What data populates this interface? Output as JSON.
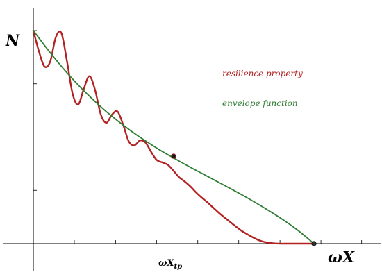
{
  "chart_data": {
    "type": "line",
    "xlabel": "ωX",
    "ylabel": "N",
    "xlim": [
      -0.05,
      1.25
    ],
    "ylim": [
      -0.15,
      1.1
    ],
    "grid": false,
    "legend_position": "top-right",
    "series": [
      {
        "name": "resilience property",
        "color": "#b22222",
        "x": [
          0,
          0.02,
          0.04,
          0.06,
          0.08,
          0.1,
          0.12,
          0.14,
          0.16,
          0.18,
          0.2,
          0.22,
          0.24,
          0.26,
          0.28,
          0.3,
          0.32,
          0.34,
          0.36,
          0.38,
          0.4,
          0.42,
          0.44,
          0.46,
          0.48,
          0.5,
          0.52,
          0.54,
          0.56,
          0.58,
          0.6,
          0.62,
          0.64,
          0.66,
          0.68,
          0.7,
          0.72,
          0.74,
          0.76,
          0.78,
          0.8,
          0.82,
          0.84,
          0.86,
          0.88,
          0.9,
          0.92,
          0.94,
          0.96,
          0.98,
          1.0
        ],
        "y": [
          1.0,
          0.902,
          0.831,
          0.854,
          0.968,
          0.988,
          0.855,
          0.703,
          0.653,
          0.727,
          0.786,
          0.721,
          0.608,
          0.567,
          0.605,
          0.62,
          0.558,
          0.48,
          0.461,
          0.484,
          0.474,
          0.43,
          0.392,
          0.381,
          0.369,
          0.341,
          0.311,
          0.291,
          0.268,
          0.24,
          0.216,
          0.194,
          0.17,
          0.146,
          0.124,
          0.103,
          0.082,
          0.062,
          0.046,
          0.031,
          0.018,
          0.009,
          0.004,
          0.001,
          0.0,
          0.0,
          0.0,
          0.0,
          0.0,
          0.0,
          0.0
        ]
      },
      {
        "name": "envelope function",
        "color": "#2e7d32",
        "x": [
          0,
          0.05,
          0.1,
          0.15,
          0.2,
          0.25,
          0.3,
          0.35,
          0.4,
          0.45,
          0.5,
          0.55,
          0.6,
          0.65,
          0.7,
          0.75,
          0.8,
          0.85,
          0.9,
          0.95,
          1.0
        ],
        "y": [
          1.0,
          0.913,
          0.832,
          0.758,
          0.692,
          0.631,
          0.577,
          0.527,
          0.482,
          0.44,
          0.402,
          0.365,
          0.33,
          0.295,
          0.26,
          0.224,
          0.186,
          0.146,
          0.103,
          0.055,
          0.0
        ]
      }
    ],
    "annotations": [
      {
        "label": "ωX_tp",
        "x": 0.5,
        "y": 0.41
      }
    ],
    "end_point": {
      "x": 1.0,
      "y": 0.0
    }
  },
  "labels": {
    "y_axis": "N",
    "x_axis": "ωX",
    "tp_base": "ωX",
    "tp_sub": "tp"
  }
}
